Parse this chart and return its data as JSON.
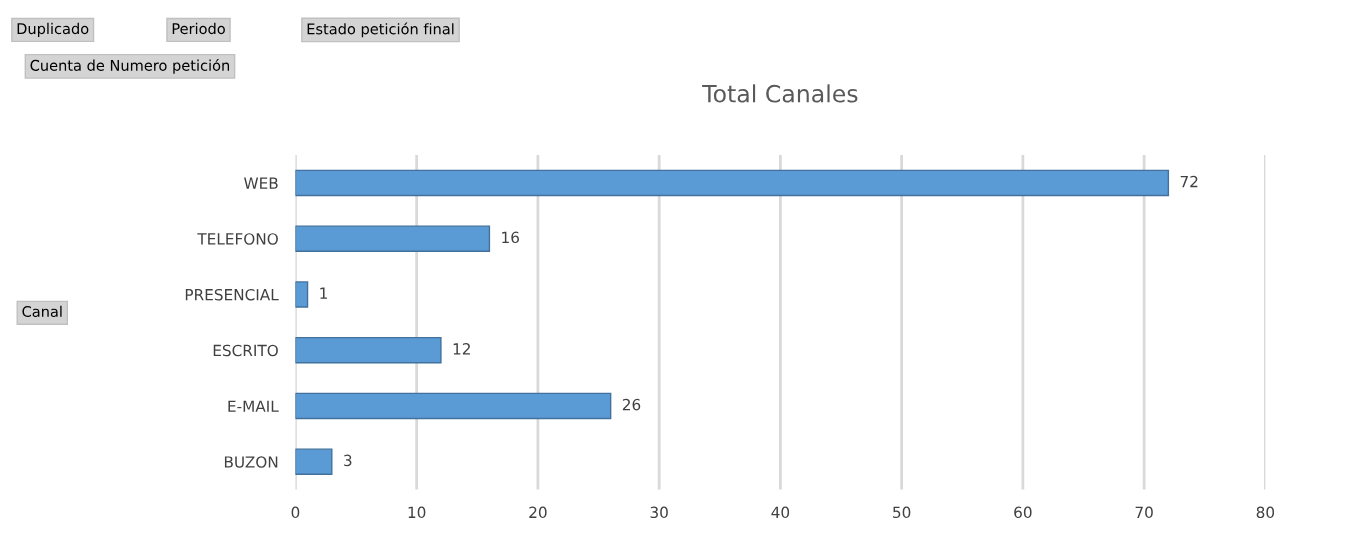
{
  "chart_data": {
    "type": "bar",
    "orientation": "horizontal",
    "title": "Total Canales",
    "categories": [
      "WEB",
      "TELEFONO",
      "PRESENCIAL",
      "ESCRITO",
      "E-MAIL",
      "BUZON"
    ],
    "values": [
      72,
      16,
      1,
      12,
      26,
      3
    ],
    "color": "#5b9bd5",
    "xlim": [
      0,
      80
    ],
    "xticks": [
      0,
      10,
      20,
      30,
      40,
      50,
      60,
      70,
      80
    ],
    "grid": "x",
    "data_labels": true,
    "annotations": [
      "Duplicado",
      "Periodo",
      "Estado petición final",
      "Cuenta de Numero petición",
      "Canal"
    ]
  }
}
